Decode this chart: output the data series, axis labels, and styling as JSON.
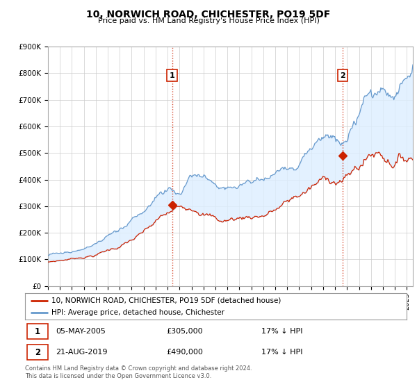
{
  "title": "10, NORWICH ROAD, CHICHESTER, PO19 5DF",
  "subtitle": "Price paid vs. HM Land Registry's House Price Index (HPI)",
  "ylim": [
    0,
    900000
  ],
  "yticks": [
    0,
    100000,
    200000,
    300000,
    400000,
    500000,
    600000,
    700000,
    800000,
    900000
  ],
  "ytick_labels": [
    "£0",
    "£100K",
    "£200K",
    "£300K",
    "£400K",
    "£500K",
    "£600K",
    "£700K",
    "£800K",
    "£900K"
  ],
  "xlim_start": 1995.0,
  "xlim_end": 2025.5,
  "line1_color": "#cc2200",
  "line2_color": "#6699cc",
  "fill_color": "#ddeeff",
  "purchase1_x": 2005.37,
  "purchase1_y": 305000,
  "purchase2_x": 2019.64,
  "purchase2_y": 490000,
  "legend_line1": "10, NORWICH ROAD, CHICHESTER, PO19 5DF (detached house)",
  "legend_line2": "HPI: Average price, detached house, Chichester",
  "note1_date": "05-MAY-2005",
  "note1_price": "£305,000",
  "note1_hpi": "17% ↓ HPI",
  "note2_date": "21-AUG-2019",
  "note2_price": "£490,000",
  "note2_hpi": "17% ↓ HPI",
  "footer": "Contains HM Land Registry data © Crown copyright and database right 2024.\nThis data is licensed under the Open Government Licence v3.0.",
  "background_color": "#ffffff",
  "grid_color": "#cccccc"
}
